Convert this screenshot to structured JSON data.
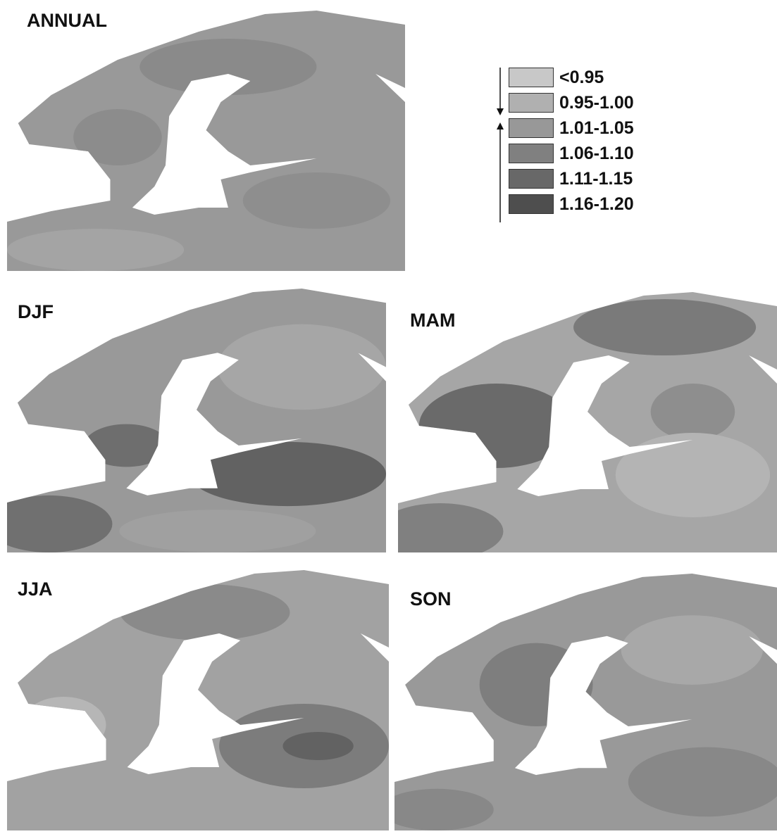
{
  "panels": [
    {
      "title": "ANNUAL"
    },
    {
      "title": "DJF"
    },
    {
      "title": "MAM"
    },
    {
      "title": "JJA"
    },
    {
      "title": "SON"
    }
  ],
  "legend": {
    "items": [
      {
        "label": "<0.95",
        "color": "#c8c8c8"
      },
      {
        "label": "0.95-1.00",
        "color": "#b0b0b0"
      },
      {
        "label": "1.01-1.05",
        "color": "#989898"
      },
      {
        "label": "1.06-1.10",
        "color": "#808080"
      },
      {
        "label": "1.11-1.15",
        "color": "#686868"
      },
      {
        "label": "1.16-1.20",
        "color": "#4e4e4e"
      }
    ]
  }
}
